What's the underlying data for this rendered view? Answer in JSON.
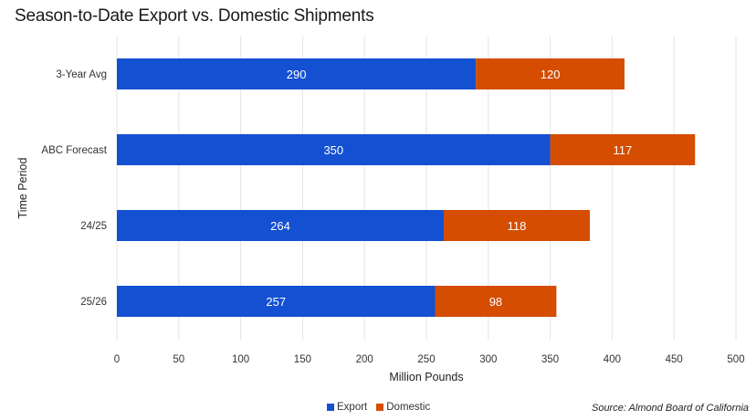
{
  "chart_data": {
    "type": "bar",
    "orientation": "horizontal",
    "stacked": true,
    "title": "Season-to-Date Export vs. Domestic Shipments",
    "xlabel": "Million Pounds",
    "ylabel": "Time Period",
    "categories": [
      "3-Year Avg",
      "ABC Forecast",
      "24/25",
      "25/26"
    ],
    "series": [
      {
        "name": "Export",
        "color": "#1450D2",
        "values": [
          290,
          350,
          264,
          257
        ]
      },
      {
        "name": "Domestic",
        "color": "#D44D00",
        "values": [
          120,
          117,
          118,
          98
        ]
      }
    ],
    "xlim": [
      0,
      500
    ],
    "xticks": [
      0,
      50,
      100,
      150,
      200,
      250,
      300,
      350,
      400,
      450,
      500
    ],
    "grid": true,
    "legend_position": "bottom-center",
    "source": "Source: Almond Board of California"
  }
}
